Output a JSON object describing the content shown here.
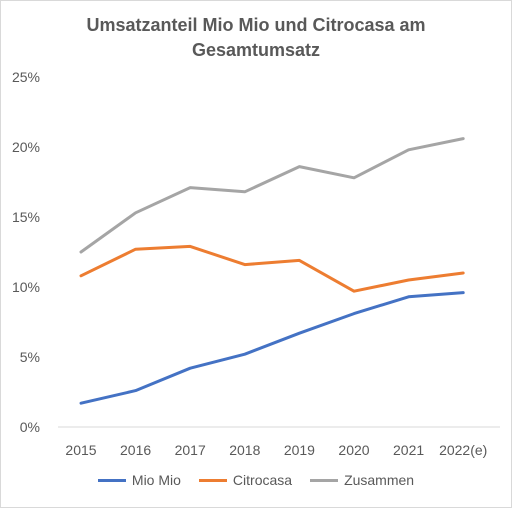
{
  "chart_data": {
    "type": "line",
    "title_line1": "Umsatzanteil Mio Mio und Citrocasa am",
    "title_line2": "Gesamtumsatz",
    "categories": [
      "2015",
      "2016",
      "2017",
      "2018",
      "2019",
      "2020",
      "2021",
      "2022(e)"
    ],
    "y_ticks": [
      "0%",
      "5%",
      "10%",
      "15%",
      "20%",
      "25%"
    ],
    "ylim": [
      0,
      25
    ],
    "grid": false,
    "legend_position": "bottom",
    "series": [
      {
        "name": "Mio Mio",
        "color": "#4472c4",
        "values": [
          1.7,
          2.6,
          4.2,
          5.2,
          6.7,
          8.1,
          9.3,
          9.6
        ]
      },
      {
        "name": "Citrocasa",
        "color": "#ed7d31",
        "values": [
          10.8,
          12.7,
          12.9,
          11.6,
          11.9,
          9.7,
          10.5,
          11.0
        ]
      },
      {
        "name": "Zusammen",
        "color": "#a5a5a5",
        "values": [
          12.5,
          15.3,
          17.1,
          16.8,
          18.6,
          17.8,
          19.8,
          20.6
        ]
      }
    ]
  }
}
